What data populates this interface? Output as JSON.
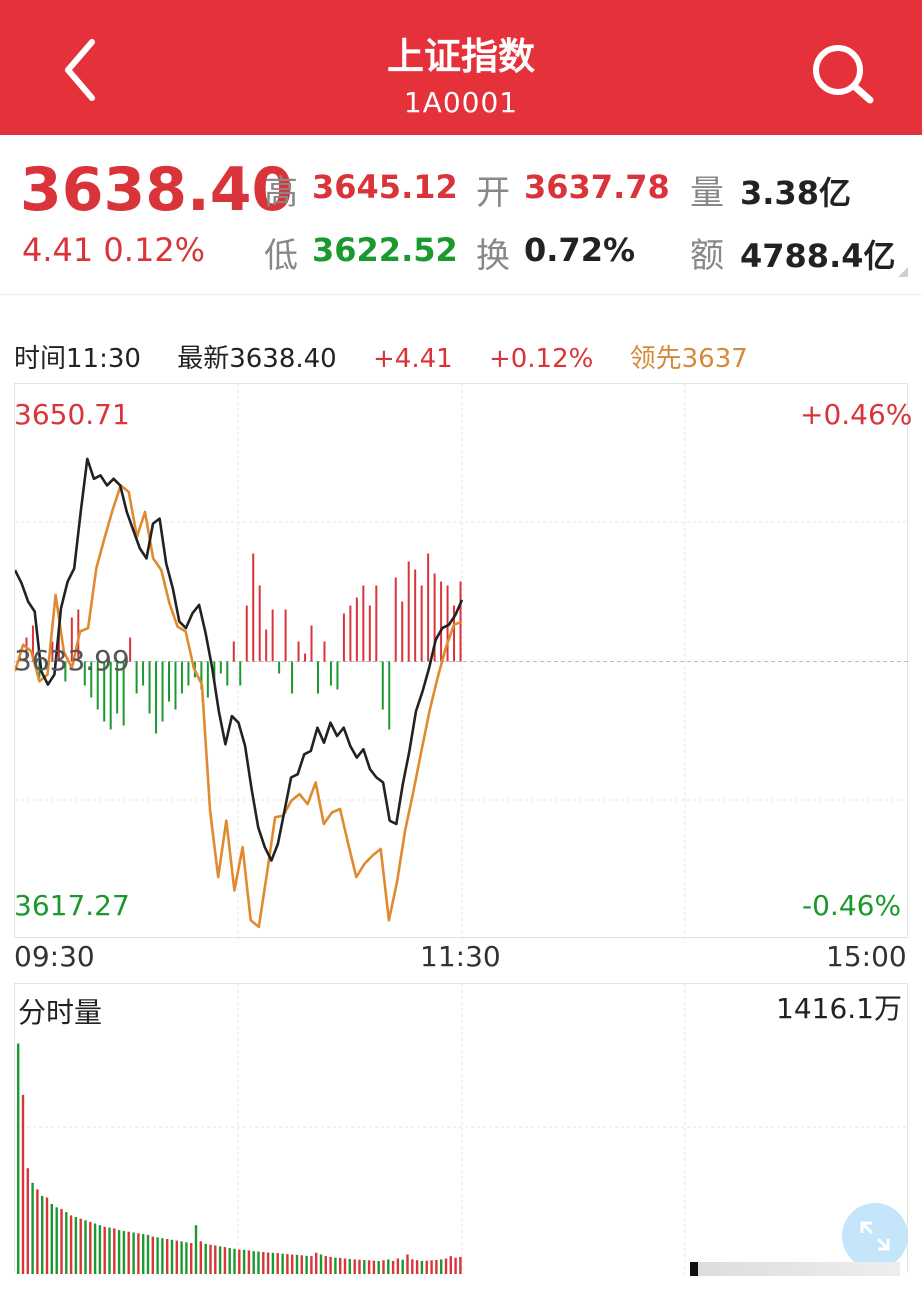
{
  "header": {
    "title": "上证指数",
    "code": "1A0001",
    "bg_color": "#e5323a"
  },
  "quote": {
    "price": "3638.40",
    "change": "4.41",
    "change_pct": "0.12%",
    "high_label": "高",
    "high": "3645.12",
    "open_label": "开",
    "open": "3637.78",
    "volume_label": "量",
    "volume": "3.38亿",
    "low_label": "低",
    "low": "3622.52",
    "turnover_label": "换",
    "turnover": "0.72%",
    "amount_label": "额",
    "amount": "4788.4亿"
  },
  "infobar": {
    "time": "时间11:30",
    "latest": "最新3638.40",
    "change": "+4.41",
    "change_pct": "+0.12%",
    "lead": "领先3637"
  },
  "chart": {
    "y_max": "3650.71",
    "y_min": "3617.27",
    "y_mid": "3633.99",
    "pct_max": "+0.46%",
    "pct_min": "-0.46%",
    "x_labels": [
      "09:30",
      "11:30",
      "15:00"
    ],
    "volume_title": "分时量",
    "volume_max": "1416.1万",
    "colors": {
      "up": "#d9343a",
      "down": "#1a9a2e",
      "price_line": "#222222",
      "lead_line": "#e08a30"
    }
  },
  "chart_data": {
    "type": "line",
    "x_range": [
      "09:30",
      "15:00"
    ],
    "ylim": [
      3617.27,
      3650.71
    ],
    "prev_close": 3633.99,
    "price_series": [
      3639.5,
      3638.7,
      3637.6,
      3637.0,
      3633.4,
      3632.6,
      3633.2,
      3637.2,
      3638.8,
      3639.6,
      3643.0,
      3646.2,
      3645.0,
      3645.2,
      3644.6,
      3645.0,
      3644.6,
      3643.0,
      3641.9,
      3640.8,
      3640.2,
      3642.3,
      3642.6,
      3639.9,
      3638.4,
      3636.4,
      3636.0,
      3636.9,
      3637.4,
      3635.7,
      3633.6,
      3631.0,
      3629.0,
      3630.7,
      3630.3,
      3628.9,
      3626.3,
      3624.0,
      3622.8,
      3622.0,
      3623.0,
      3625.0,
      3627.0,
      3627.2,
      3628.4,
      3628.6,
      3630.0,
      3629.1,
      3630.3,
      3629.5,
      3630.0,
      3628.9,
      3628.2,
      3628.7,
      3627.5,
      3627.0,
      3626.7,
      3624.4,
      3624.2,
      3626.6,
      3628.6,
      3631.0,
      3632.2,
      3633.6,
      3635.3,
      3636.0,
      3636.2,
      3636.8,
      3637.7
    ],
    "lead_series": [
      3633.4,
      3635.0,
      3634.6,
      3632.8,
      3633.2,
      3638.0,
      3634.6,
      3633.6,
      3635.8,
      3636.0,
      3639.6,
      3641.4,
      3643.1,
      3644.6,
      3644.2,
      3641.5,
      3643.0,
      3640.2,
      3639.5,
      3637.5,
      3636.1,
      3635.8,
      3633.6,
      3632.6,
      3625.0,
      3621.0,
      3624.4,
      3620.2,
      3622.8,
      3618.4,
      3618.0,
      3621.2,
      3624.6,
      3624.7,
      3625.6,
      3626.0,
      3625.4,
      3626.7,
      3624.2,
      3624.9,
      3625.1,
      3623.0,
      3621.0,
      3621.8,
      3622.3,
      3622.7,
      3618.4,
      3620.7,
      3623.8,
      3626.1,
      3628.6,
      3631.0,
      3633.0,
      3634.8,
      3636.2,
      3636.4
    ],
    "volume_up_down": [
      1,
      1,
      1,
      -1,
      -1,
      1,
      1,
      -1,
      1,
      1,
      -1,
      -1,
      -1,
      -1,
      -1,
      -1,
      -1,
      1,
      -1,
      -1,
      -1,
      -1,
      -1,
      -1,
      -1,
      -1,
      -1,
      -1,
      -1,
      -1,
      -1,
      -1,
      -1,
      1,
      -1,
      1,
      1,
      1,
      1,
      1,
      -1,
      1,
      -1,
      1,
      1,
      1,
      -1,
      1,
      -1,
      -1,
      1,
      1,
      1,
      1,
      1,
      1,
      -1,
      -1,
      1,
      1,
      1,
      1,
      1,
      1,
      1,
      1,
      1,
      1,
      1
    ],
    "bar_values": [
      0.3,
      0.6,
      0.9,
      0.4,
      0.2,
      0.5,
      0.8,
      0.5,
      1.1,
      1.3,
      0.6,
      0.9,
      1.2,
      1.5,
      1.7,
      1.3,
      1.6,
      0.6,
      0.8,
      0.6,
      1.3,
      1.8,
      1.5,
      1.0,
      1.2,
      0.8,
      0.6,
      0.4,
      0.7,
      0.9,
      0.5,
      0.3,
      0.6,
      0.5,
      0.6,
      1.4,
      2.7,
      1.9,
      0.8,
      1.3,
      0.3,
      1.3,
      0.8,
      0.5,
      0.2,
      0.9,
      0.8,
      0.5,
      0.6,
      0.7,
      1.2,
      1.4,
      1.6,
      1.9,
      1.4,
      1.9,
      1.2,
      1.7,
      2.1,
      1.5,
      2.5,
      2.3,
      1.9,
      2.7,
      2.2,
      2.0,
      1.9,
      1.4,
      2.0
    ],
    "volume_series": [
      1416.1,
      1100,
      650,
      560,
      520,
      480,
      470,
      430,
      410,
      400,
      380,
      360,
      350,
      340,
      330,
      320,
      310,
      300,
      290,
      285,
      280,
      270,
      265,
      260,
      255,
      250,
      245,
      240,
      230,
      225,
      220,
      215,
      210,
      205,
      200,
      195,
      190,
      300,
      200,
      185,
      180,
      175,
      170,
      165,
      160,
      155,
      150,
      148,
      145,
      140,
      138,
      135,
      132,
      130,
      128,
      125,
      122,
      120,
      118,
      115,
      112,
      110,
      130,
      120,
      110,
      105,
      100,
      98,
      95,
      92,
      90,
      88,
      86,
      84,
      82,
      80,
      85,
      90,
      80,
      95,
      88,
      120,
      90,
      85,
      80,
      82,
      84,
      86,
      90,
      95,
      110,
      100,
      105
    ],
    "volume_colors": [
      -1,
      1,
      1,
      -1,
      1,
      -1,
      1,
      -1,
      -1,
      1,
      -1,
      1,
      -1,
      1,
      -1,
      1,
      -1,
      -1,
      1,
      -1,
      1,
      -1,
      -1,
      1,
      -1,
      1,
      -1,
      -1,
      1,
      -1,
      -1,
      1,
      -1,
      1,
      -1,
      -1,
      1,
      -1,
      1,
      -1,
      1,
      1,
      -1,
      1,
      -1,
      -1,
      1,
      -1,
      1,
      -1,
      -1,
      1,
      1,
      -1,
      1,
      -1,
      1,
      1,
      -1,
      1,
      -1,
      1,
      1,
      -1,
      1,
      1,
      -1,
      1,
      1,
      -1,
      1,
      1,
      -1,
      1,
      1,
      -1,
      1,
      -1,
      1,
      1,
      -1,
      1,
      1,
      1,
      -1,
      1,
      1,
      1,
      -1,
      1,
      1,
      1,
      1
    ]
  }
}
